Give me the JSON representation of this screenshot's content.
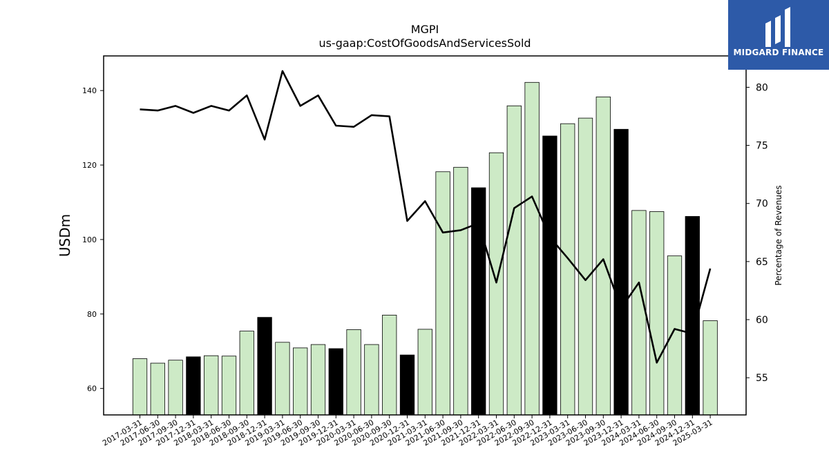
{
  "chart_data": {
    "type": "bar",
    "title": "MGPI",
    "subtitle": "us-gaap:CostOfGoodsAndServicesSold",
    "ylabel": "USDm",
    "y2label": "Percentage of Revenues",
    "ylim": [
      52.9,
      149.3
    ],
    "y2lim": [
      51.8,
      82.7
    ],
    "yticks": [
      60,
      80,
      100,
      120,
      140
    ],
    "y2ticks": [
      55,
      60,
      65,
      70,
      75,
      80
    ],
    "categories": [
      "2017-03-31",
      "2017-06-30",
      "2017-09-30",
      "2017-12-31",
      "2018-03-31",
      "2018-06-30",
      "2018-09-30",
      "2018-12-31",
      "2019-03-31",
      "2019-06-30",
      "2019-09-30",
      "2019-12-31",
      "2020-03-31",
      "2020-06-30",
      "2020-09-30",
      "2020-12-31",
      "2021-03-31",
      "2021-06-30",
      "2021-09-30",
      "2021-12-31",
      "2022-03-31",
      "2022-06-30",
      "2022-09-30",
      "2022-12-31",
      "2023-03-31",
      "2023-06-30",
      "2023-09-30",
      "2023-12-31",
      "2024-03-31",
      "2024-06-30",
      "2024-09-30",
      "2024-12-31",
      "2025-03-31"
    ],
    "series": [
      {
        "kind": "bar",
        "values": [
          68.0,
          66.8,
          67.6,
          68.5,
          68.8,
          68.7,
          75.4,
          79.1,
          72.4,
          70.9,
          71.8,
          70.7,
          75.8,
          71.8,
          79.7,
          69.0,
          75.9,
          118.2,
          119.4,
          113.9,
          123.3,
          135.9,
          142.2,
          127.8,
          131.1,
          132.6,
          138.3,
          129.6,
          107.8,
          107.5,
          95.6,
          106.2,
          78.2
        ],
        "quarter_end_flags": [
          false,
          false,
          false,
          true,
          false,
          false,
          false,
          true,
          false,
          false,
          false,
          true,
          false,
          false,
          false,
          true,
          false,
          false,
          false,
          true,
          false,
          false,
          false,
          true,
          false,
          false,
          false,
          true,
          false,
          false,
          false,
          true,
          false
        ]
      },
      {
        "kind": "line",
        "values": [
          78.1,
          78.0,
          78.4,
          77.8,
          78.4,
          78.0,
          79.3,
          75.5,
          81.4,
          78.4,
          79.3,
          76.7,
          76.6,
          77.6,
          77.5,
          68.5,
          70.2,
          67.5,
          67.7,
          68.3,
          63.2,
          69.6,
          70.6,
          67.1,
          65.3,
          63.4,
          65.2,
          61.0,
          63.2,
          56.3,
          59.2,
          58.8,
          64.4
        ]
      }
    ],
    "colors": {
      "bar": "#cdeac6",
      "bar_highlight": "#000000",
      "line": "#000000"
    }
  },
  "logo": {
    "text": "MIDGARD FINANCE",
    "background": "#2d5aa8"
  }
}
